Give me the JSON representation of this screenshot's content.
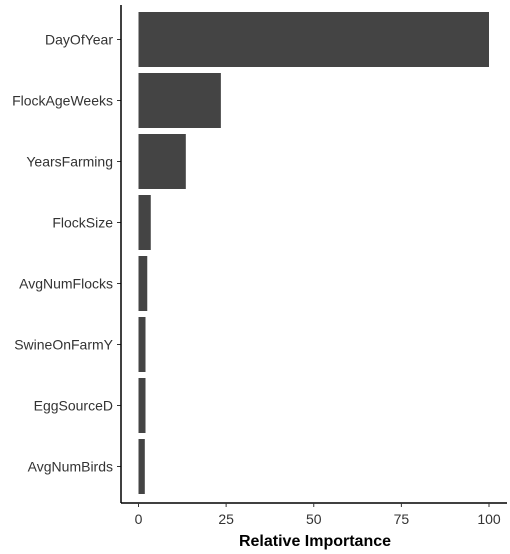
{
  "chart_data": {
    "type": "bar",
    "orientation": "horizontal",
    "categories": [
      "DayOfYear",
      "FlockAgeWeeks",
      "YearsFarming",
      "FlockSize",
      "AvgNumFlocks",
      "SwineOnFarmY",
      "EggSourceD",
      "AvgNumBirds"
    ],
    "values": [
      100,
      23.5,
      13.5,
      3.5,
      2.5,
      2,
      2,
      1.8
    ],
    "xlabel": "Relative Importance",
    "ylabel": "",
    "xlim": [
      0,
      100
    ],
    "xticks": [
      0,
      25,
      50,
      75,
      100
    ],
    "grid": false,
    "bar_color": "#444444"
  }
}
